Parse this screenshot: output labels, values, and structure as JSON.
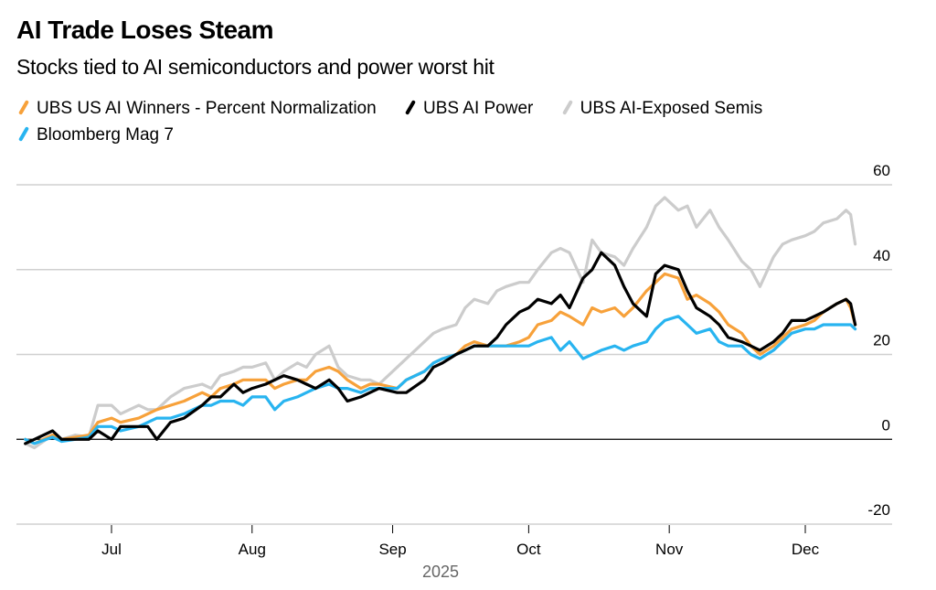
{
  "header": {
    "title": "AI Trade Loses Steam",
    "subtitle": "Stocks tied to AI semiconductors and power worst hit"
  },
  "chart_data": {
    "type": "line",
    "title": "AI Trade Loses Steam",
    "subtitle": "Stocks tied to AI semiconductors and power worst hit",
    "xlabel": "2025",
    "ylabel": "",
    "ylim": [
      -20,
      60
    ],
    "yticks": [
      60,
      40,
      20,
      0,
      -20
    ],
    "xlim": [
      "2025-06-10",
      "2025-12-19"
    ],
    "xticks": [
      {
        "date": "2025-07-01",
        "label": "Jul"
      },
      {
        "date": "2025-08-01",
        "label": "Aug"
      },
      {
        "date": "2025-09-01",
        "label": "Sep"
      },
      {
        "date": "2025-10-01",
        "label": "Oct"
      },
      {
        "date": "2025-11-01",
        "label": "Nov"
      },
      {
        "date": "2025-12-01",
        "label": "Dec"
      }
    ],
    "year_label": "2025",
    "grid": true,
    "legend_position": "top-left",
    "x": [
      "2025-06-12",
      "2025-06-14",
      "2025-06-18",
      "2025-06-20",
      "2025-06-23",
      "2025-06-26",
      "2025-06-28",
      "2025-07-01",
      "2025-07-03",
      "2025-07-07",
      "2025-07-09",
      "2025-07-11",
      "2025-07-14",
      "2025-07-17",
      "2025-07-21",
      "2025-07-23",
      "2025-07-25",
      "2025-07-28",
      "2025-07-30",
      "2025-08-01",
      "2025-08-04",
      "2025-08-06",
      "2025-08-08",
      "2025-08-11",
      "2025-08-13",
      "2025-08-15",
      "2025-08-18",
      "2025-08-20",
      "2025-08-22",
      "2025-08-25",
      "2025-08-27",
      "2025-08-29",
      "2025-09-02",
      "2025-09-04",
      "2025-09-08",
      "2025-09-10",
      "2025-09-12",
      "2025-09-15",
      "2025-09-17",
      "2025-09-19",
      "2025-09-22",
      "2025-09-24",
      "2025-09-26",
      "2025-09-29",
      "2025-10-01",
      "2025-10-03",
      "2025-10-06",
      "2025-10-08",
      "2025-10-10",
      "2025-10-13",
      "2025-10-15",
      "2025-10-17",
      "2025-10-20",
      "2025-10-22",
      "2025-10-24",
      "2025-10-27",
      "2025-10-29",
      "2025-10-31",
      "2025-11-03",
      "2025-11-05",
      "2025-11-07",
      "2025-11-10",
      "2025-11-12",
      "2025-11-14",
      "2025-11-17",
      "2025-11-19",
      "2025-11-21",
      "2025-11-24",
      "2025-11-26",
      "2025-11-28",
      "2025-12-01",
      "2025-12-03",
      "2025-12-05",
      "2025-12-08",
      "2025-12-10",
      "2025-12-11",
      "2025-12-12"
    ],
    "series": [
      {
        "name": "UBS AI-Exposed Semis",
        "color": "#cccccc",
        "values": [
          -1,
          -2,
          1,
          0,
          1,
          0.5,
          8,
          8,
          6,
          8,
          7,
          7,
          10,
          12,
          13,
          12,
          15,
          16,
          17,
          17,
          18,
          14,
          16,
          18,
          17,
          20,
          22,
          17,
          15,
          14,
          14,
          13,
          17,
          19,
          23,
          25,
          26,
          27,
          31,
          33,
          32,
          35,
          36,
          37,
          37,
          40,
          44,
          45,
          44,
          37,
          47,
          44,
          43,
          41,
          45,
          50,
          55,
          57,
          54,
          55,
          50,
          54,
          50,
          47,
          42,
          40,
          36,
          43,
          46,
          47,
          48,
          49,
          51,
          52,
          54,
          53,
          46
        ],
        "stroke_order": 0
      },
      {
        "name": "UBS US AI Winners - Percent Normalization",
        "color": "#f7a13a",
        "values": [
          0,
          -1,
          1,
          0,
          0.5,
          1,
          4,
          5,
          4,
          5,
          6,
          7,
          8,
          9,
          11,
          10,
          12,
          13,
          14,
          14,
          14,
          12,
          13,
          14,
          14,
          16,
          17,
          16,
          14,
          12,
          13,
          13,
          12,
          14,
          16,
          18,
          19,
          20,
          22,
          23,
          22,
          22,
          22,
          23,
          24,
          27,
          28,
          30,
          29,
          27,
          31,
          30,
          31,
          29,
          31,
          35,
          37,
          39,
          38,
          33,
          34,
          32,
          30,
          27,
          25,
          22,
          20,
          22,
          24,
          26,
          27,
          28,
          30,
          32,
          33,
          31,
          27
        ],
        "stroke_order": 1
      },
      {
        "name": "Bloomberg Mag 7",
        "color": "#28b4f0",
        "values": [
          0,
          -1,
          0.5,
          -0.5,
          0,
          0.5,
          3,
          3,
          2,
          3,
          4,
          5,
          5,
          6,
          8,
          8,
          9,
          9,
          8,
          10,
          10,
          7,
          9,
          10,
          11,
          12,
          13,
          12,
          12,
          11,
          12,
          12,
          12,
          14,
          16,
          18,
          19,
          20,
          21,
          22,
          22,
          22,
          22,
          22,
          22,
          23,
          24,
          21,
          23,
          19,
          20,
          21,
          22,
          21,
          22,
          23,
          26,
          28,
          29,
          27,
          25,
          26,
          23,
          22,
          22,
          20,
          19,
          21,
          23,
          25,
          26,
          26,
          27,
          27,
          27,
          27,
          26
        ],
        "stroke_order": 2
      },
      {
        "name": "UBS AI Power",
        "color": "#000000",
        "values": [
          -1,
          0,
          2,
          0,
          0,
          0,
          2,
          0,
          3,
          3,
          3,
          0,
          4,
          5,
          8,
          10,
          10,
          13,
          11,
          12,
          13,
          14,
          15,
          14,
          13,
          12,
          14,
          12,
          9,
          10,
          11,
          12,
          11,
          11,
          14,
          17,
          18,
          20,
          21,
          22,
          22,
          24,
          27,
          30,
          31,
          33,
          32,
          34,
          31,
          38,
          40,
          44,
          41,
          36,
          32,
          29,
          39,
          41,
          40,
          35,
          31,
          29,
          27,
          24,
          23,
          22,
          21,
          23,
          25,
          28,
          28,
          29,
          30,
          32,
          33,
          32,
          27
        ],
        "stroke_order": 3
      }
    ]
  },
  "legend": {
    "items": [
      {
        "label": "UBS US AI Winners - Percent Normalization",
        "color": "#f7a13a"
      },
      {
        "label": "UBS AI Power",
        "color": "#000000"
      },
      {
        "label": "UBS AI-Exposed Semis",
        "color": "#cccccc"
      },
      {
        "label": "Bloomberg Mag 7",
        "color": "#28b4f0"
      }
    ]
  }
}
